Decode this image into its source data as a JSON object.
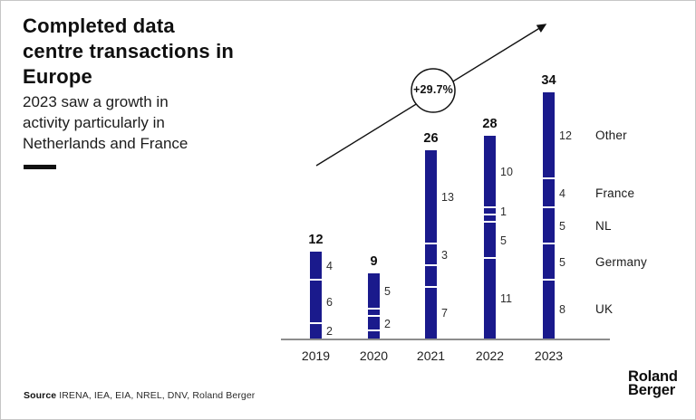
{
  "header": {
    "title": "Completed data\ncentre transactions in\nEurope",
    "subtitle": "2023 saw a growth in\nactivity particularly in\nNetherlands and France"
  },
  "chart_data": {
    "type": "bar",
    "variant": "stacked",
    "title": "Completed data centre transactions in Europe",
    "x_categories": [
      "2019",
      "2020",
      "2021",
      "2022",
      "2023"
    ],
    "stack_order": "bottom-to-top",
    "series": [
      {
        "name": "UK",
        "values": [
          2,
          1,
          7,
          11,
          8
        ],
        "labels_shown": [
          true,
          false,
          true,
          true,
          true
        ]
      },
      {
        "name": "Germany",
        "values": [
          6,
          2,
          3,
          5,
          5
        ],
        "labels_shown": [
          true,
          true,
          false,
          true,
          true
        ]
      },
      {
        "name": "NL",
        "values": [
          0,
          1,
          3,
          1,
          5
        ],
        "labels_shown": [
          false,
          false,
          true,
          false,
          true
        ]
      },
      {
        "name": "France",
        "values": [
          0,
          0,
          0,
          1,
          4
        ],
        "labels_shown": [
          false,
          false,
          false,
          true,
          true
        ]
      },
      {
        "name": "Other",
        "values": [
          4,
          5,
          13,
          10,
          12
        ],
        "labels_shown": [
          true,
          true,
          true,
          true,
          true
        ]
      }
    ],
    "totals": [
      12,
      9,
      26,
      28,
      34
    ],
    "growth_badge": "+29.7%",
    "bar_color": "#1a1a8c",
    "ylim": [
      0,
      34
    ],
    "grid": false,
    "legend_position": "right of last bar"
  },
  "footer": {
    "source_label": "Source",
    "source_text": " IRENA, IEA, EIA, NREL, DNV, Roland Berger",
    "logo": "Roland\nBerger"
  }
}
